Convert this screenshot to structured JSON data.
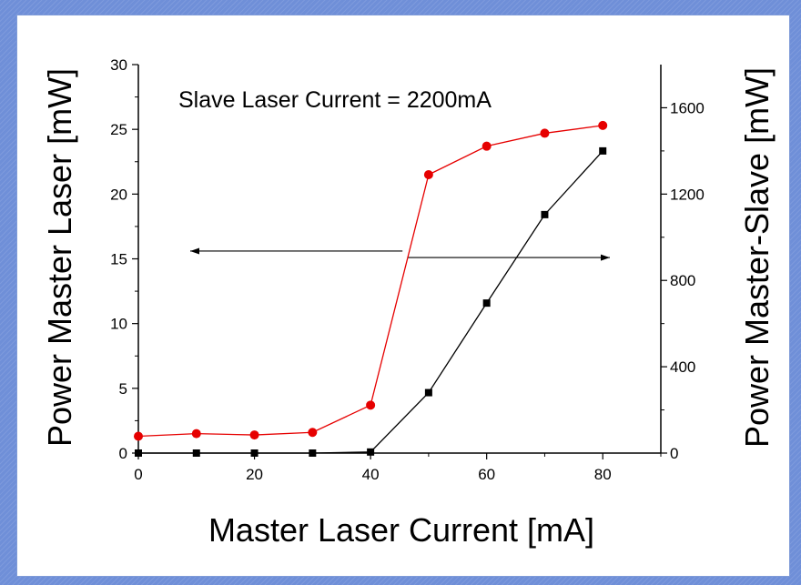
{
  "chart_data": {
    "type": "line",
    "annotation": "Slave Laser Current = 2200mA",
    "xlabel": "Master Laser Current [mA]",
    "ylabel_left": "Power Master Laser [mW]",
    "ylabel_right": "Power Master-Slave [mW]",
    "xlim": [
      0,
      90
    ],
    "ylim_left": [
      0,
      30
    ],
    "ylim_right": [
      0,
      1800
    ],
    "x_ticks": [
      0,
      20,
      40,
      60,
      80
    ],
    "y_left_ticks": [
      0,
      5,
      10,
      15,
      20,
      25,
      30
    ],
    "y_right_ticks": [
      0,
      400,
      800,
      1200,
      1600
    ],
    "series": [
      {
        "axis": "left",
        "color": "#e60000",
        "marker": "circle",
        "x": [
          0,
          10,
          20,
          30,
          40,
          50,
          60,
          70,
          80
        ],
        "y": [
          1.3,
          1.5,
          1.4,
          1.6,
          3.7,
          21.5,
          23.7,
          24.7,
          25.3
        ]
      },
      {
        "axis": "right",
        "color": "#000000",
        "marker": "square",
        "x": [
          0,
          10,
          20,
          30,
          40,
          50,
          60,
          70,
          80
        ],
        "y": [
          0,
          0,
          0,
          0,
          5,
          280,
          695,
          1105,
          1400
        ]
      }
    ],
    "arrows": [
      {
        "points_to": "left",
        "from_x": 45.5,
        "at_y_left": 15.6
      },
      {
        "points_to": "right",
        "from_x": 46.5,
        "at_y_left": 15.1
      }
    ],
    "grid": false
  }
}
